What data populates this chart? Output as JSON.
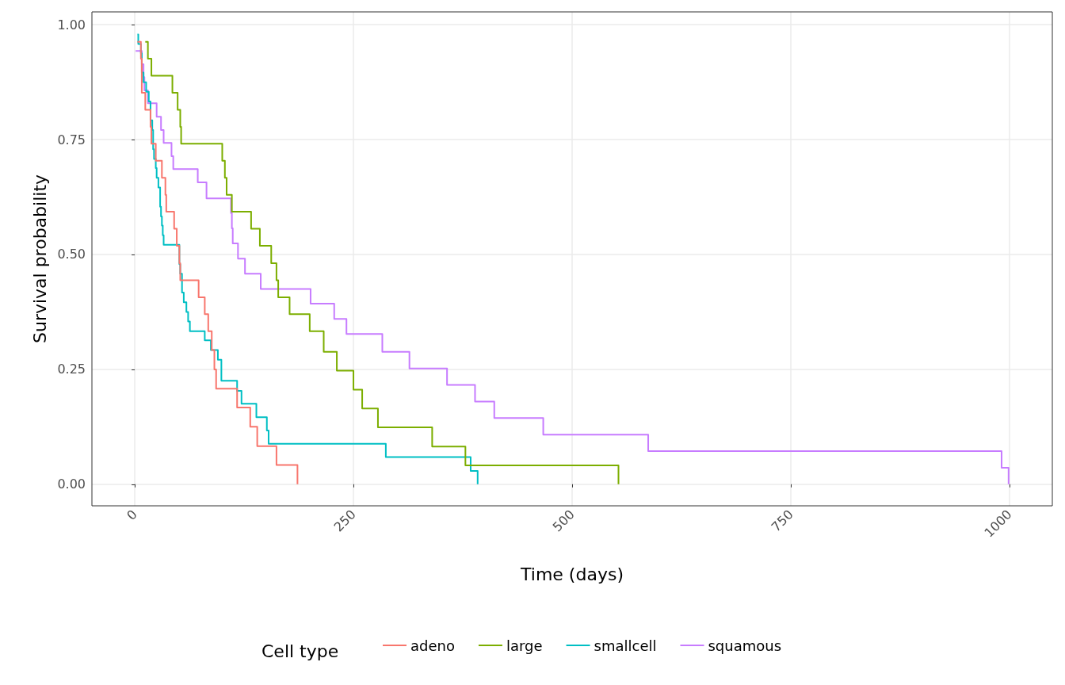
{
  "chart_data": {
    "type": "step",
    "xlabel": "Time (days)",
    "ylabel": "Survival probability",
    "legend_title": "Cell type",
    "xlim": [
      -49,
      1049
    ],
    "xticks": [
      0,
      250,
      500,
      750,
      1000
    ],
    "ylim": [
      -0.047,
      1.028
    ],
    "yticks": [
      {
        "value": 0,
        "label": "0.00"
      },
      {
        "value": 0.25,
        "label": "0.25"
      },
      {
        "value": 0.5,
        "label": "0.50"
      },
      {
        "value": 0.75,
        "label": "0.75"
      },
      {
        "value": 1,
        "label": "1.00"
      }
    ],
    "grid": true,
    "legend": "bottom",
    "line_style": "solid",
    "marker": "none",
    "series": [
      {
        "name": "adeno",
        "color": "#f8766d",
        "x": [
          3,
          7,
          8,
          12,
          18,
          19,
          24,
          31,
          35,
          36,
          45,
          48,
          51,
          52,
          73,
          80,
          84,
          88,
          91,
          93,
          117,
          132,
          140,
          162,
          186
        ],
        "values": [
          0.963,
          0.926,
          0.852,
          0.815,
          0.778,
          0.741,
          0.704,
          0.667,
          0.63,
          0.593,
          0.556,
          0.519,
          0.481,
          0.444,
          0.407,
          0.37,
          0.333,
          0.292,
          0.25,
          0.208,
          0.167,
          0.125,
          0.083,
          0.042,
          0
        ]
      },
      {
        "name": "large",
        "color": "#7cae00",
        "x": [
          12,
          15,
          19,
          43,
          49,
          52,
          53,
          100,
          103,
          105,
          111,
          133,
          143,
          156,
          162,
          164,
          177,
          200,
          216,
          231,
          250,
          260,
          278,
          340,
          378,
          553
        ],
        "values": [
          0.963,
          0.926,
          0.889,
          0.852,
          0.815,
          0.778,
          0.741,
          0.704,
          0.667,
          0.63,
          0.593,
          0.556,
          0.519,
          0.481,
          0.444,
          0.407,
          0.37,
          0.333,
          0.288,
          0.247,
          0.206,
          0.165,
          0.124,
          0.082,
          0.041,
          0
        ]
      },
      {
        "name": "smallcell",
        "color": "#00bfc4",
        "x": [
          3,
          4,
          7,
          8,
          10,
          13,
          16,
          18,
          20,
          21,
          22,
          24,
          25,
          27,
          29,
          30,
          31,
          32,
          33,
          51,
          52,
          54,
          56,
          59,
          61,
          63,
          80,
          87,
          95,
          99,
          117,
          122,
          139,
          151,
          153,
          287,
          384,
          392
        ],
        "values": [
          0.979,
          0.958,
          0.938,
          0.896,
          0.875,
          0.854,
          0.833,
          0.792,
          0.771,
          0.729,
          0.708,
          0.688,
          0.667,
          0.646,
          0.604,
          0.583,
          0.563,
          0.542,
          0.521,
          0.479,
          0.458,
          0.417,
          0.396,
          0.375,
          0.354,
          0.333,
          0.313,
          0.292,
          0.271,
          0.225,
          0.203,
          0.175,
          0.146,
          0.117,
          0.088,
          0.059,
          0.029,
          0
        ]
      },
      {
        "name": "squamous",
        "color": "#c77cff",
        "x": [
          1,
          8,
          10,
          11,
          15,
          25,
          30,
          33,
          42,
          44,
          72,
          82,
          110,
          111,
          112,
          118,
          126,
          144,
          201,
          228,
          242,
          283,
          314,
          357,
          389,
          411,
          467,
          587,
          991,
          999
        ],
        "values": [
          0.943,
          0.914,
          0.886,
          0.857,
          0.829,
          0.8,
          0.771,
          0.743,
          0.714,
          0.686,
          0.657,
          0.622,
          0.59,
          0.557,
          0.524,
          0.491,
          0.458,
          0.425,
          0.393,
          0.36,
          0.327,
          0.288,
          0.252,
          0.216,
          0.18,
          0.144,
          0.108,
          0.072,
          0.036,
          0
        ]
      }
    ]
  }
}
